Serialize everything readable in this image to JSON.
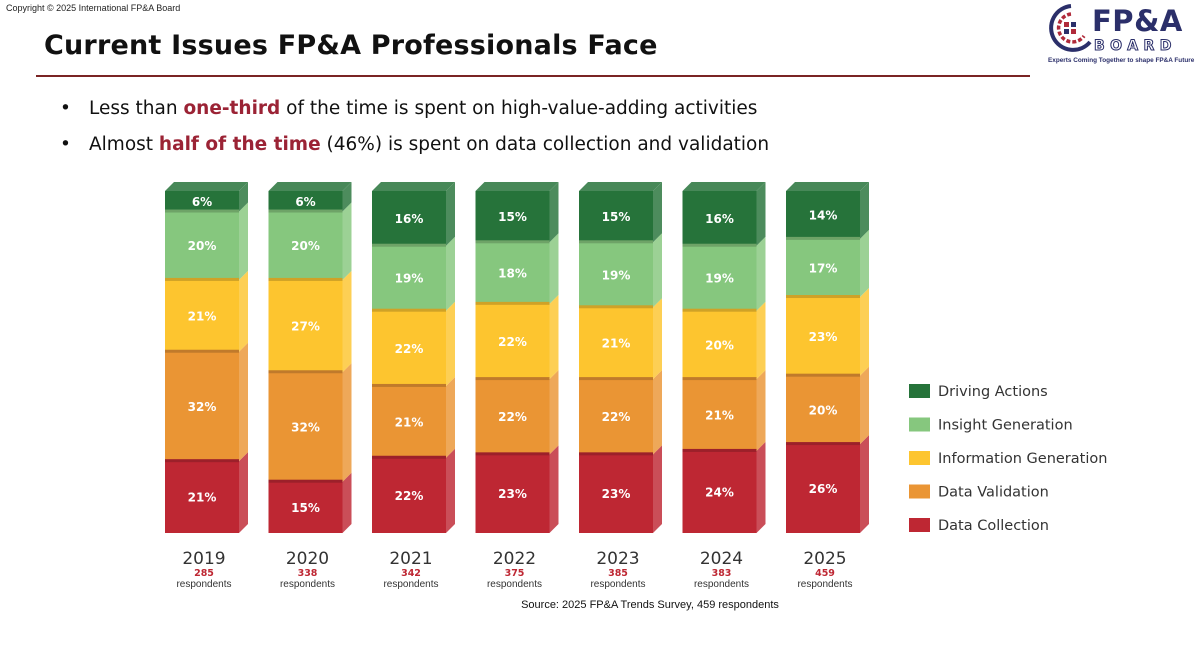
{
  "copyright": "Copyright © 2025 International  FP&A Board",
  "title": "Current Issues FP&A Professionals Face",
  "logo": {
    "name": "FP&A",
    "sub": "BOARD",
    "tagline": "Experts Coming Together to shape FP&A Future"
  },
  "bullets": [
    {
      "before": "Less than ",
      "highlight": "one-third",
      "after": " of the time is spent on high-value-adding activities"
    },
    {
      "before": "Almost ",
      "highlight": "half of the time",
      "after": " (46%) is spent on data collection and validation"
    }
  ],
  "source": "Source: 2025 FP&A Trends Survey, 459 respondents",
  "colors": {
    "driving_actions": "#26733a",
    "insight_generation": "#86c77e",
    "information_generation": "#fdc52f",
    "data_validation": "#ea9534",
    "data_collection": "#be2733"
  },
  "chart_data": {
    "type": "bar",
    "stacked": true,
    "unit": "%",
    "categories": [
      "2019",
      "2020",
      "2021",
      "2022",
      "2023",
      "2024",
      "2025"
    ],
    "respondents": [
      "285",
      "338",
      "342",
      "375",
      "385",
      "383",
      "459"
    ],
    "respondents_label": "respondents",
    "series": [
      {
        "name": "Data Collection",
        "color": "#be2733",
        "values": [
          21,
          15,
          22,
          23,
          23,
          24,
          26
        ]
      },
      {
        "name": "Data Validation",
        "color": "#ea9534",
        "values": [
          32,
          32,
          21,
          22,
          22,
          21,
          20
        ]
      },
      {
        "name": "Information Generation",
        "color": "#fdc52f",
        "values": [
          21,
          27,
          22,
          22,
          21,
          20,
          23
        ]
      },
      {
        "name": "Insight Generation",
        "color": "#86c77e",
        "values": [
          20,
          20,
          19,
          18,
          19,
          19,
          17
        ]
      },
      {
        "name": "Driving Actions",
        "color": "#26733a",
        "values": [
          6,
          6,
          16,
          15,
          15,
          16,
          14
        ]
      }
    ],
    "legend_order": [
      "Driving Actions",
      "Insight Generation",
      "Information Generation",
      "Data Validation",
      "Data Collection"
    ],
    "legend_position": "right",
    "grid": false
  }
}
